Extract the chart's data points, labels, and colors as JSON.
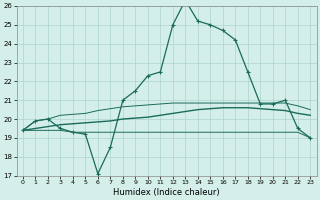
{
  "xlabel": "Humidex (Indice chaleur)",
  "x_ticks": [
    0,
    1,
    2,
    3,
    4,
    5,
    6,
    7,
    8,
    9,
    10,
    11,
    12,
    13,
    14,
    15,
    16,
    17,
    18,
    19,
    20,
    21,
    22,
    23
  ],
  "ylim": [
    17,
    26
  ],
  "xlim": [
    -0.5,
    23.5
  ],
  "yticks": [
    17,
    18,
    19,
    20,
    21,
    22,
    23,
    24,
    25,
    26
  ],
  "bg_color": "#d4eeea",
  "grid_color": "#aed4ce",
  "line_color": "#1a6b5a",
  "series": {
    "main": [
      19.4,
      19.9,
      20.0,
      19.5,
      19.3,
      19.2,
      17.1,
      18.5,
      21.0,
      21.5,
      22.3,
      22.5,
      25.0,
      26.3,
      25.2,
      25.0,
      24.7,
      24.2,
      22.5,
      20.8,
      20.8,
      21.0,
      19.5,
      19.0
    ],
    "mean": [
      19.4,
      19.5,
      19.6,
      19.7,
      19.75,
      19.8,
      19.85,
      19.9,
      20.0,
      20.05,
      20.1,
      20.2,
      20.3,
      20.4,
      20.5,
      20.55,
      20.6,
      20.6,
      20.6,
      20.55,
      20.5,
      20.45,
      20.3,
      20.2
    ],
    "min": [
      19.4,
      19.4,
      19.4,
      19.4,
      19.3,
      19.3,
      19.3,
      19.3,
      19.3,
      19.3,
      19.3,
      19.3,
      19.3,
      19.3,
      19.3,
      19.3,
      19.3,
      19.3,
      19.3,
      19.3,
      19.3,
      19.3,
      19.3,
      19.0
    ],
    "max": [
      19.4,
      19.9,
      20.0,
      20.2,
      20.25,
      20.3,
      20.45,
      20.55,
      20.65,
      20.7,
      20.75,
      20.8,
      20.85,
      20.85,
      20.85,
      20.85,
      20.85,
      20.85,
      20.85,
      20.85,
      20.85,
      20.85,
      20.7,
      20.5
    ]
  }
}
